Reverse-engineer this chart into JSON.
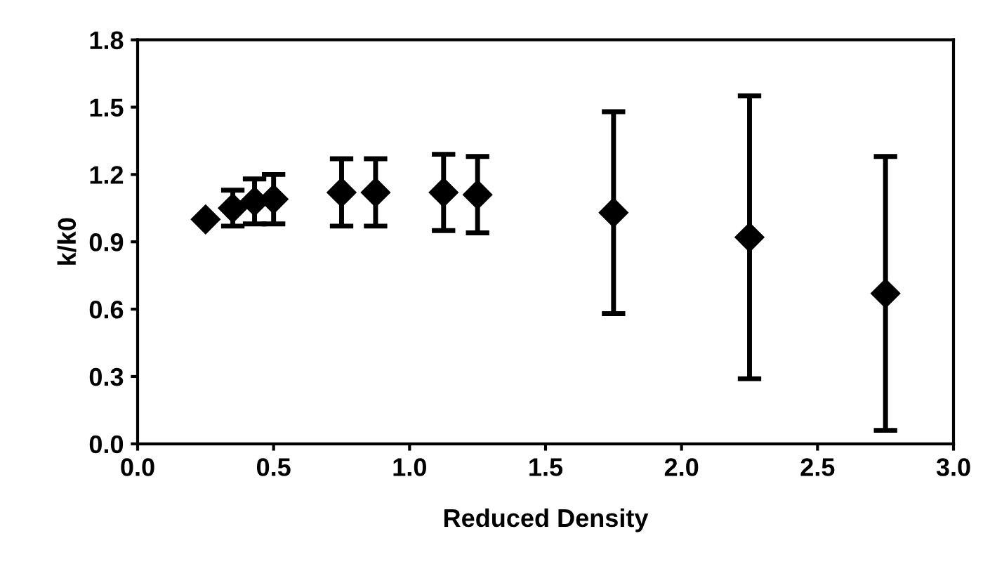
{
  "chart_data": {
    "type": "scatter",
    "xlabel": "Reduced Density",
    "ylabel": "k/k0",
    "x": [
      0.25,
      0.35,
      0.43,
      0.5,
      0.75,
      0.875,
      1.125,
      1.25,
      1.75,
      2.25,
      2.75
    ],
    "series": [
      {
        "color": "#000000",
        "values": [
          1.0,
          1.05,
          1.08,
          1.09,
          1.12,
          1.12,
          1.12,
          1.11,
          1.03,
          0.92,
          0.67
        ],
        "errors": [
          null,
          0.08,
          0.1,
          0.11,
          0.15,
          0.15,
          0.17,
          0.17,
          0.45,
          0.63,
          0.61
        ]
      }
    ],
    "xlim": [
      0,
      3
    ],
    "xticks": [
      {
        "value": 0,
        "label": "0.0"
      },
      0.5,
      {
        "value": 1,
        "label": "1.0"
      },
      1.5,
      {
        "value": 2,
        "label": "2.0"
      },
      2.5,
      {
        "value": 3,
        "label": "3.0"
      }
    ],
    "ylim": [
      0,
      1.8
    ],
    "yticks": [
      {
        "value": 0,
        "label": "0.0"
      },
      0.3,
      0.6,
      0.9,
      1.2,
      1.5,
      1.8
    ],
    "marker": "diamond",
    "grid": false,
    "legend": false
  }
}
